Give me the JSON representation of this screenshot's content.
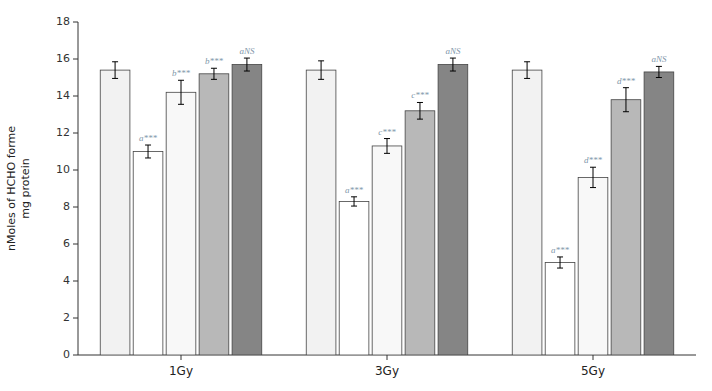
{
  "chart_data": {
    "type": "bar",
    "categories": [
      "1Gy",
      "3Gy",
      "5Gy"
    ],
    "series": [
      {
        "color": "#f2f2f2",
        "values": [
          15.4,
          15.4,
          15.4
        ],
        "errors": [
          0.45,
          0.5,
          0.45
        ]
      },
      {
        "color": "#ffffff",
        "values": [
          11.0,
          8.3,
          5.0
        ],
        "errors": [
          0.35,
          0.25,
          0.3
        ],
        "annotations": [
          "a***",
          "a***",
          "a***"
        ]
      },
      {
        "color": "#f8f8f8",
        "values": [
          14.2,
          11.3,
          9.6
        ],
        "errors": [
          0.65,
          0.4,
          0.55
        ],
        "annotations": [
          "b***",
          "c***",
          "d***"
        ]
      },
      {
        "color": "#b8b8b8",
        "values": [
          15.2,
          13.2,
          13.8
        ],
        "errors": [
          0.3,
          0.45,
          0.65
        ],
        "annotations": [
          "b***",
          "c***",
          "d***"
        ]
      },
      {
        "color": "#858585",
        "values": [
          15.7,
          15.7,
          15.3
        ],
        "errors": [
          0.35,
          0.35,
          0.3
        ],
        "annotations": [
          "aNS",
          "aNS",
          "aNS"
        ]
      }
    ],
    "ylabel": "nMoles of HCHO forme\nmg protein",
    "ylim": [
      0,
      18
    ],
    "yticks": [
      0,
      2,
      4,
      6,
      8,
      10,
      12,
      14,
      16,
      18
    ],
    "grid": false
  }
}
